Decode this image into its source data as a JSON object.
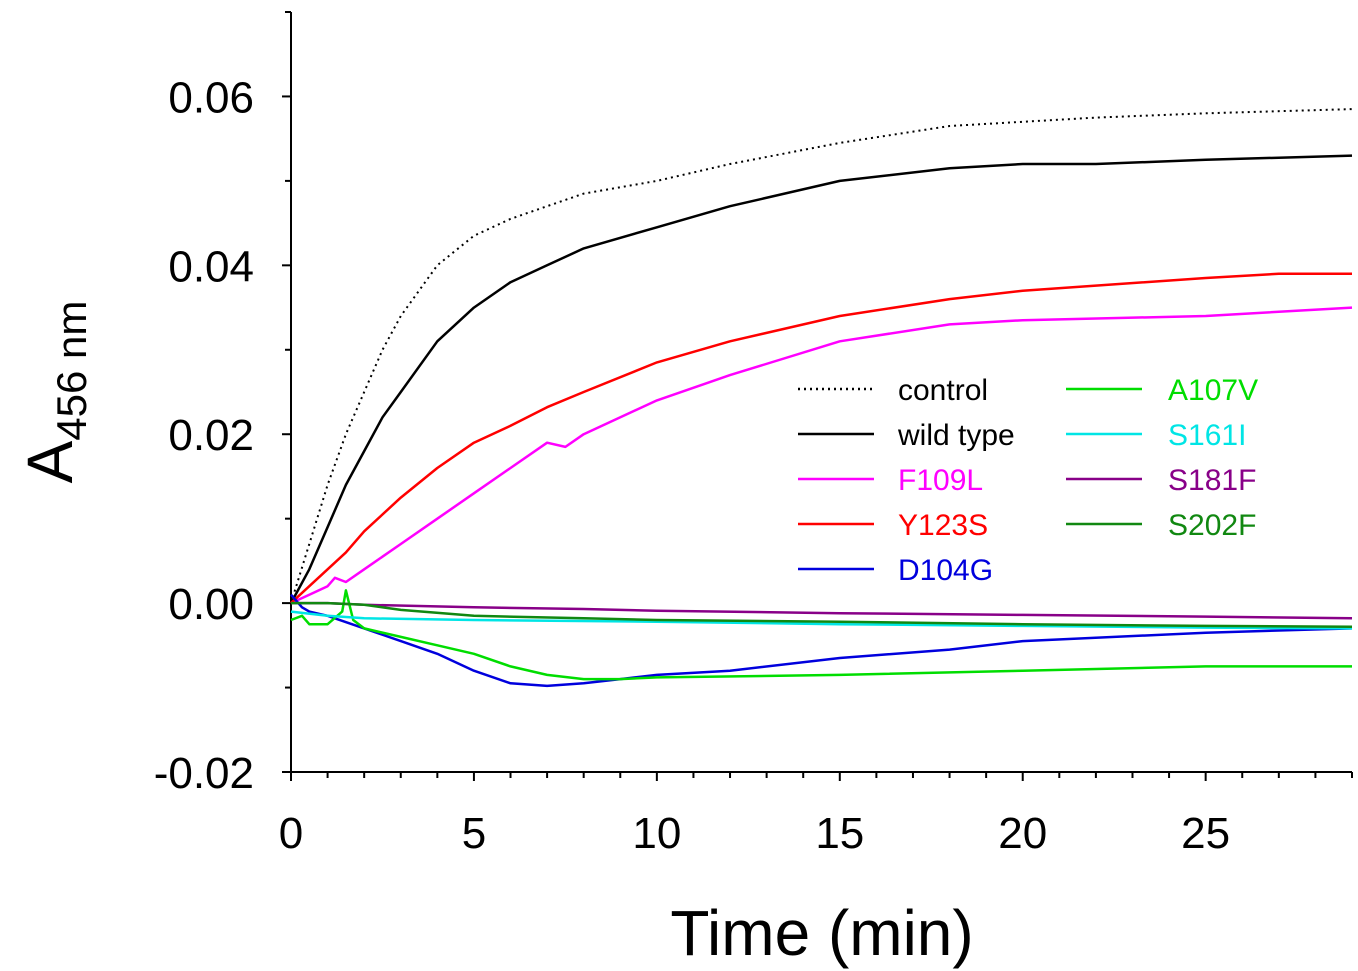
{
  "chart_data": {
    "type": "line",
    "title": "",
    "xlabel": "Time (min)",
    "ylabel_main": "A",
    "ylabel_sub": "456 nm",
    "xlim": [
      0,
      29
    ],
    "ylim": [
      -0.02,
      0.07
    ],
    "x_ticks": [
      0,
      5,
      10,
      15,
      20,
      25
    ],
    "x_tick_labels": [
      "0",
      "5",
      "10",
      "15",
      "20",
      "25"
    ],
    "y_ticks": [
      -0.02,
      0.0,
      0.02,
      0.04,
      0.06
    ],
    "y_tick_labels": [
      "-0.02",
      "0.00",
      "0.02",
      "0.04",
      "0.06"
    ],
    "grid": false,
    "legend_position": "center-right",
    "series": [
      {
        "name": "control",
        "color": "#000000",
        "dash": "dotted",
        "x": [
          0,
          0.5,
          1,
          1.5,
          2,
          2.5,
          3,
          4,
          5,
          6,
          7,
          8,
          10,
          12,
          15,
          18,
          20,
          22,
          25,
          29
        ],
        "y": [
          0.0,
          0.007,
          0.014,
          0.02,
          0.025,
          0.03,
          0.034,
          0.04,
          0.0435,
          0.0455,
          0.047,
          0.0485,
          0.05,
          0.052,
          0.0545,
          0.0565,
          0.057,
          0.0575,
          0.058,
          0.0585
        ]
      },
      {
        "name": "wild type",
        "color": "#000000",
        "dash": "solid",
        "x": [
          0,
          0.5,
          1,
          1.5,
          2,
          2.5,
          3,
          4,
          5,
          6,
          7,
          8,
          10,
          12,
          15,
          18,
          20,
          22,
          25,
          29
        ],
        "y": [
          0.0,
          0.004,
          0.009,
          0.014,
          0.018,
          0.022,
          0.025,
          0.031,
          0.035,
          0.038,
          0.04,
          0.042,
          0.0445,
          0.047,
          0.05,
          0.0515,
          0.052,
          0.052,
          0.0525,
          0.053
        ]
      },
      {
        "name": "F109L",
        "color": "#ff00ff",
        "dash": "solid",
        "x": [
          0,
          0.5,
          1,
          1.2,
          1.5,
          2,
          3,
          4,
          5,
          6,
          7,
          7.5,
          8,
          10,
          12,
          15,
          18,
          20,
          25,
          29
        ],
        "y": [
          0.0,
          0.001,
          0.002,
          0.003,
          0.0025,
          0.004,
          0.007,
          0.01,
          0.013,
          0.016,
          0.019,
          0.0185,
          0.02,
          0.024,
          0.027,
          0.031,
          0.033,
          0.0335,
          0.034,
          0.035
        ]
      },
      {
        "name": "Y123S",
        "color": "#ff0000",
        "dash": "solid",
        "x": [
          0,
          0.5,
          1,
          1.5,
          2,
          3,
          4,
          5,
          6,
          7,
          8,
          10,
          12,
          15,
          18,
          20,
          25,
          27,
          29
        ],
        "y": [
          0.0,
          0.002,
          0.004,
          0.006,
          0.0085,
          0.0125,
          0.016,
          0.019,
          0.021,
          0.0232,
          0.025,
          0.0285,
          0.031,
          0.034,
          0.036,
          0.037,
          0.0385,
          0.039,
          0.039
        ]
      },
      {
        "name": "D104G",
        "color": "#0000dd",
        "dash": "solid",
        "x": [
          0,
          0.3,
          0.5,
          1,
          2,
          3,
          4,
          5,
          6,
          7,
          8,
          9,
          10,
          12,
          15,
          18,
          20,
          25,
          29
        ],
        "y": [
          0.001,
          -0.0005,
          -0.001,
          -0.0015,
          -0.003,
          -0.0045,
          -0.006,
          -0.008,
          -0.0095,
          -0.0098,
          -0.0095,
          -0.009,
          -0.0085,
          -0.008,
          -0.0065,
          -0.0055,
          -0.0045,
          -0.0035,
          -0.003
        ]
      },
      {
        "name": "A107V",
        "color": "#00dd00",
        "dash": "solid",
        "x": [
          0,
          0.3,
          0.5,
          1,
          1.4,
          1.5,
          1.7,
          2,
          3,
          4,
          5,
          6,
          7,
          8,
          9,
          10,
          15,
          20,
          25,
          29
        ],
        "y": [
          -0.002,
          -0.0015,
          -0.0025,
          -0.0025,
          -0.001,
          0.0015,
          -0.002,
          -0.003,
          -0.004,
          -0.005,
          -0.006,
          -0.0075,
          -0.0085,
          -0.009,
          -0.009,
          -0.0088,
          -0.0085,
          -0.008,
          -0.0075,
          -0.0075
        ]
      },
      {
        "name": "S161I",
        "color": "#00e5e5",
        "dash": "solid",
        "x": [
          0,
          1,
          2,
          5,
          10,
          15,
          20,
          25,
          29
        ],
        "y": [
          -0.001,
          -0.0015,
          -0.0018,
          -0.002,
          -0.0022,
          -0.0025,
          -0.0027,
          -0.0029,
          -0.003
        ]
      },
      {
        "name": "S181F",
        "color": "#880088",
        "dash": "solid",
        "x": [
          0,
          1,
          2,
          5,
          8,
          10,
          15,
          20,
          25,
          29
        ],
        "y": [
          0.0,
          0.0,
          -0.0002,
          -0.0005,
          -0.0007,
          -0.0009,
          -0.0012,
          -0.0014,
          -0.0016,
          -0.0018
        ]
      },
      {
        "name": "S202F",
        "color": "#118811",
        "dash": "solid",
        "x": [
          0,
          1,
          2,
          3,
          5,
          8,
          10,
          15,
          20,
          25,
          29
        ],
        "y": [
          0.0,
          0.0,
          -0.0002,
          -0.0008,
          -0.0015,
          -0.0018,
          -0.002,
          -0.0022,
          -0.0025,
          -0.0027,
          -0.0028
        ]
      }
    ]
  }
}
